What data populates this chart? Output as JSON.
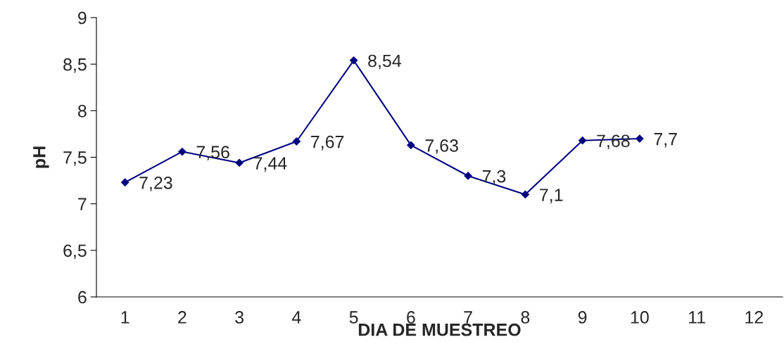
{
  "chart_data": {
    "type": "line",
    "xlabel": "DIA DE MUESTREO",
    "ylabel": "pH",
    "categories": [
      "1",
      "2",
      "3",
      "4",
      "5",
      "6",
      "7",
      "8",
      "9",
      "10",
      "11",
      "12"
    ],
    "series": [
      {
        "color": "#000080",
        "values": [
          7.23,
          7.56,
          7.44,
          7.67,
          8.54,
          7.63,
          7.3,
          7.1,
          7.68,
          7.7,
          null,
          null
        ],
        "value_labels": [
          "7,23",
          "7,56",
          "7,44",
          "7,67",
          "8,54",
          "7,63",
          "7,3",
          "7,1",
          "7,68",
          "7,7",
          null,
          null
        ]
      }
    ],
    "ylim": [
      6,
      9
    ],
    "yticks": [
      6,
      {
        "value": 6.5,
        "label": "6,5"
      },
      7,
      {
        "value": 7.5,
        "label": "7,5"
      },
      8,
      {
        "value": 8.5,
        "label": "8,5"
      },
      9
    ],
    "marker": "diamond",
    "line_style": "solid",
    "grid": false,
    "legend": false
  }
}
